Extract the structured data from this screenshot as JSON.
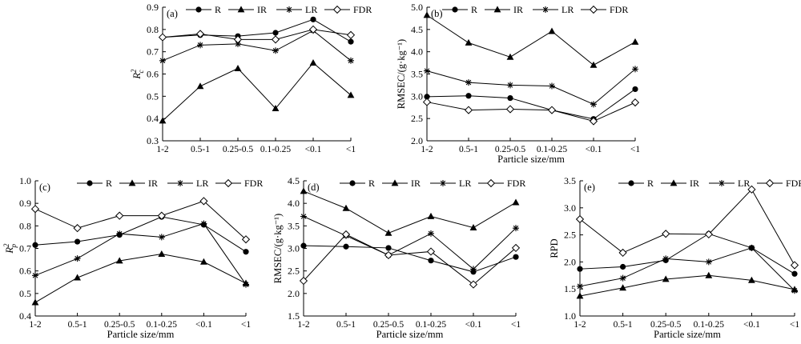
{
  "chart_data": [
    {
      "type": "line",
      "panel": "(a)",
      "ylabel": "R²c",
      "xlabel": "",
      "ylim": [
        0.3,
        0.9
      ],
      "yticks": [
        "0.3",
        "0.4",
        "0.5",
        "0.6",
        "0.7",
        "0.8",
        "0.9"
      ],
      "categories": [
        "1-2",
        "0.5-1",
        "0.25-0.5",
        "0.1-0.25",
        "<0.1",
        "<1"
      ],
      "legend_position": "top",
      "series": [
        {
          "name": "R",
          "marker": "circle",
          "values": [
            0.765,
            0.775,
            0.77,
            0.785,
            0.845,
            0.745
          ]
        },
        {
          "name": "IR",
          "marker": "triangle",
          "values": [
            0.39,
            0.545,
            0.625,
            0.445,
            0.65,
            0.505
          ]
        },
        {
          "name": "LR",
          "marker": "star",
          "values": [
            0.66,
            0.73,
            0.735,
            0.705,
            0.795,
            0.66
          ]
        },
        {
          "name": "FDR",
          "marker": "diamond",
          "values": [
            0.765,
            0.78,
            0.755,
            0.755,
            0.8,
            0.775
          ]
        }
      ]
    },
    {
      "type": "line",
      "panel": "(b)",
      "ylabel": "RMSEC/(g·kg⁻¹)",
      "xlabel": "Particle size/mm",
      "ylim": [
        2.0,
        5.0
      ],
      "yticks": [
        "2.0",
        "2.5",
        "3.0",
        "3.5",
        "4.0",
        "4.5",
        "5.0"
      ],
      "categories": [
        "1-2",
        "0.5-1",
        "0.25-0.5",
        "0.1-0.25",
        "<0.1",
        "<1"
      ],
      "legend_position": "top",
      "series": [
        {
          "name": "R",
          "marker": "circle",
          "values": [
            2.99,
            3.01,
            2.96,
            2.69,
            2.49,
            3.16
          ]
        },
        {
          "name": "IR",
          "marker": "triangle",
          "values": [
            4.82,
            4.2,
            3.88,
            4.46,
            3.7,
            4.22
          ]
        },
        {
          "name": "LR",
          "marker": "star",
          "values": [
            3.57,
            3.31,
            3.25,
            3.23,
            2.82,
            3.61
          ]
        },
        {
          "name": "FDR",
          "marker": "diamond",
          "values": [
            2.87,
            2.69,
            2.71,
            2.69,
            2.44,
            2.86
          ]
        }
      ]
    },
    {
      "type": "line",
      "panel": "(c)",
      "ylabel": "R²p",
      "xlabel": "Particle size/mm",
      "ylim": [
        0.4,
        1.0
      ],
      "yticks": [
        "0.4",
        "0.5",
        "0.6",
        "0.7",
        "0.8",
        "0.9",
        "1.0"
      ],
      "categories": [
        "1-2",
        "0.5-1",
        "0.25-0.5",
        "0.1-0.25",
        "<0.1",
        "<1"
      ],
      "legend_position": "top",
      "series": [
        {
          "name": "R",
          "marker": "circle",
          "values": [
            0.715,
            0.73,
            0.76,
            0.84,
            0.805,
            0.685
          ]
        },
        {
          "name": "IR",
          "marker": "triangle",
          "values": [
            0.46,
            0.57,
            0.645,
            0.675,
            0.64,
            0.545
          ]
        },
        {
          "name": "LR",
          "marker": "star",
          "values": [
            0.58,
            0.655,
            0.765,
            0.75,
            0.81,
            0.54
          ]
        },
        {
          "name": "FDR",
          "marker": "diamond",
          "values": [
            0.875,
            0.79,
            0.845,
            0.845,
            0.91,
            0.74
          ]
        }
      ]
    },
    {
      "type": "line",
      "panel": "(d)",
      "ylabel": "RMSEC/(g·kg⁻¹)",
      "xlabel": "Particle size/mm",
      "ylim": [
        1.5,
        4.5
      ],
      "yticks": [
        "1.5",
        "2.0",
        "2.5",
        "3.0",
        "3.5",
        "4.0",
        "4.5"
      ],
      "categories": [
        "1-2",
        "0.5-1",
        "0.25-0.5",
        "0.1-0.25",
        "<0.1",
        "<1"
      ],
      "legend_position": "top",
      "series": [
        {
          "name": "R",
          "marker": "circle",
          "values": [
            3.06,
            3.04,
            3.01,
            2.73,
            2.48,
            2.81
          ]
        },
        {
          "name": "IR",
          "marker": "triangle",
          "values": [
            4.27,
            3.89,
            3.34,
            3.71,
            3.46,
            4.02
          ]
        },
        {
          "name": "LR",
          "marker": "star",
          "values": [
            3.71,
            3.28,
            2.85,
            3.33,
            2.54,
            3.45
          ]
        },
        {
          "name": "FDR",
          "marker": "diamond",
          "values": [
            2.28,
            3.31,
            2.85,
            2.93,
            2.2,
            3.01
          ]
        }
      ]
    },
    {
      "type": "line",
      "panel": "(e)",
      "ylabel": "RPD",
      "xlabel": "Particle size/mm",
      "ylim": [
        1.0,
        3.5
      ],
      "yticks": [
        "1.0",
        "1.5",
        "2.0",
        "2.5",
        "3.0",
        "3.5"
      ],
      "categories": [
        "1-2",
        "0.5-1",
        "0.25-0.5",
        "0.1-0.25",
        "<0.1",
        "<1"
      ],
      "legend_position": "top",
      "series": [
        {
          "name": "R",
          "marker": "circle",
          "values": [
            1.87,
            1.91,
            2.03,
            2.52,
            2.26,
            1.78
          ]
        },
        {
          "name": "IR",
          "marker": "triangle",
          "values": [
            1.37,
            1.52,
            1.68,
            1.75,
            1.66,
            1.49
          ]
        },
        {
          "name": "LR",
          "marker": "star",
          "values": [
            1.55,
            1.7,
            2.06,
            2.0,
            2.26,
            1.47
          ]
        },
        {
          "name": "FDR",
          "marker": "diamond",
          "values": [
            2.79,
            2.17,
            2.52,
            2.51,
            3.34,
            1.94
          ]
        }
      ]
    }
  ]
}
